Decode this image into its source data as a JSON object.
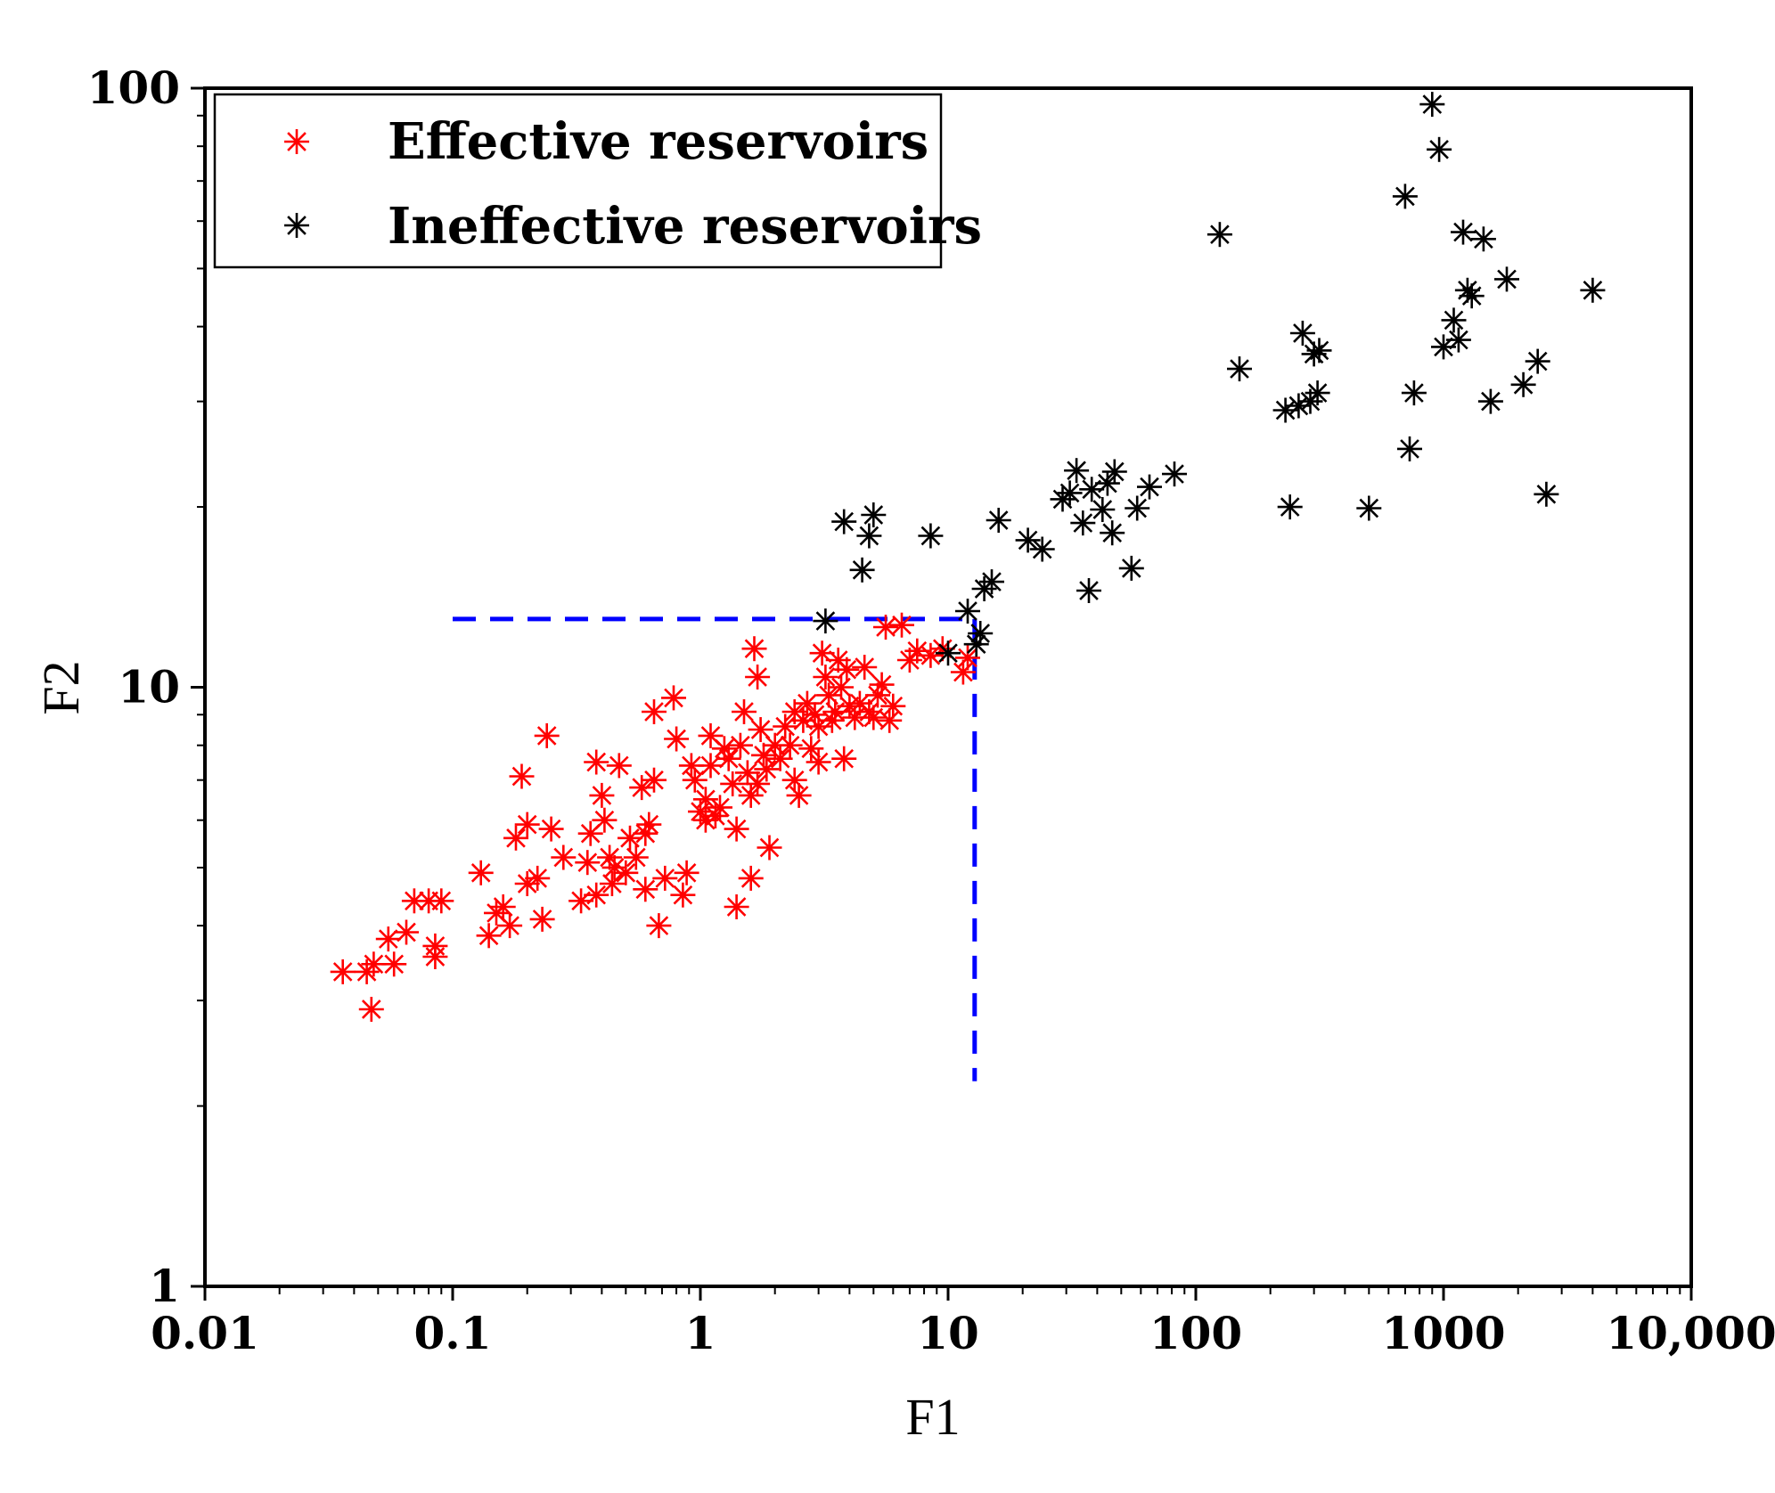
{
  "chart_data": {
    "type": "scatter",
    "xlabel": "F1",
    "ylabel": "F2",
    "xscale": "log",
    "yscale": "log",
    "xlim": [
      0.01,
      10000
    ],
    "ylim": [
      1,
      100
    ],
    "xticks": [
      "0.01",
      "0.1",
      "1",
      "10",
      "100",
      "1000",
      "10,000"
    ],
    "yticks": [
      "1",
      "10",
      "100"
    ],
    "legend_position": "top-left",
    "grid": false,
    "marker": "asterisk",
    "series": [
      {
        "name": "Effective reservoirs",
        "color": "#ff0000",
        "points": [
          [
            0.036,
            3.35
          ],
          [
            0.045,
            3.35
          ],
          [
            0.047,
            2.9
          ],
          [
            0.048,
            3.45
          ],
          [
            0.055,
            3.8
          ],
          [
            0.058,
            3.45
          ],
          [
            0.065,
            3.9
          ],
          [
            0.07,
            4.4
          ],
          [
            0.08,
            4.4
          ],
          [
            0.085,
            3.55
          ],
          [
            0.085,
            3.7
          ],
          [
            0.09,
            4.4
          ],
          [
            0.13,
            4.9
          ],
          [
            0.14,
            3.85
          ],
          [
            0.15,
            4.2
          ],
          [
            0.16,
            4.3
          ],
          [
            0.17,
            4.0
          ],
          [
            0.18,
            5.6
          ],
          [
            0.19,
            7.1
          ],
          [
            0.2,
            5.9
          ],
          [
            0.2,
            4.7
          ],
          [
            0.22,
            4.8
          ],
          [
            0.23,
            4.1
          ],
          [
            0.25,
            5.8
          ],
          [
            0.24,
            8.3
          ],
          [
            0.28,
            5.2
          ],
          [
            0.33,
            4.4
          ],
          [
            0.35,
            5.1
          ],
          [
            0.36,
            5.7
          ],
          [
            0.38,
            4.5
          ],
          [
            0.38,
            7.5
          ],
          [
            0.4,
            6.6
          ],
          [
            0.41,
            6.0
          ],
          [
            0.43,
            5.2
          ],
          [
            0.44,
            4.7
          ],
          [
            0.45,
            5.0
          ],
          [
            0.47,
            7.4
          ],
          [
            0.5,
            4.9
          ],
          [
            0.52,
            5.6
          ],
          [
            0.55,
            5.2
          ],
          [
            0.58,
            6.8
          ],
          [
            0.6,
            5.7
          ],
          [
            0.62,
            5.9
          ],
          [
            0.65,
            7.0
          ],
          [
            0.6,
            4.6
          ],
          [
            0.65,
            9.1
          ],
          [
            0.68,
            4.0
          ],
          [
            0.72,
            4.8
          ],
          [
            0.78,
            9.6
          ],
          [
            0.8,
            8.2
          ],
          [
            0.85,
            4.5
          ],
          [
            0.88,
            4.9
          ],
          [
            0.92,
            7.4
          ],
          [
            0.95,
            7.0
          ],
          [
            1.0,
            6.2
          ],
          [
            1.05,
            6.5
          ],
          [
            1.05,
            6.0
          ],
          [
            1.1,
            7.4
          ],
          [
            1.1,
            8.3
          ],
          [
            1.15,
            6.1
          ],
          [
            1.2,
            6.3
          ],
          [
            1.25,
            7.9
          ],
          [
            1.3,
            7.6
          ],
          [
            1.35,
            6.9
          ],
          [
            1.4,
            4.3
          ],
          [
            1.4,
            5.8
          ],
          [
            1.45,
            8.0
          ],
          [
            1.5,
            9.1
          ],
          [
            1.55,
            7.2
          ],
          [
            1.6,
            6.6
          ],
          [
            1.6,
            4.8
          ],
          [
            1.65,
            11.6
          ],
          [
            1.7,
            10.4
          ],
          [
            1.7,
            6.9
          ],
          [
            1.75,
            8.5
          ],
          [
            1.8,
            7.7
          ],
          [
            1.85,
            7.3
          ],
          [
            1.9,
            5.4
          ],
          [
            2.0,
            8.0
          ],
          [
            2.1,
            7.6
          ],
          [
            2.2,
            8.6
          ],
          [
            2.3,
            8.0
          ],
          [
            2.4,
            9.1
          ],
          [
            2.4,
            7.0
          ],
          [
            2.5,
            6.6
          ],
          [
            2.6,
            8.8
          ],
          [
            2.7,
            9.4
          ],
          [
            2.8,
            7.9
          ],
          [
            2.9,
            9.0
          ],
          [
            3.0,
            8.6
          ],
          [
            3.0,
            7.5
          ],
          [
            3.1,
            11.4
          ],
          [
            3.2,
            10.4
          ],
          [
            3.3,
            9.7
          ],
          [
            3.4,
            8.8
          ],
          [
            3.5,
            9.1
          ],
          [
            3.6,
            11.1
          ],
          [
            3.7,
            10.0
          ],
          [
            3.8,
            7.6
          ],
          [
            3.9,
            10.7
          ],
          [
            4.0,
            9.3
          ],
          [
            4.2,
            8.9
          ],
          [
            4.4,
            9.4
          ],
          [
            4.6,
            10.8
          ],
          [
            4.8,
            9.1
          ],
          [
            5.0,
            8.9
          ],
          [
            5.2,
            9.7
          ],
          [
            5.4,
            10.1
          ],
          [
            5.6,
            12.6
          ],
          [
            5.8,
            8.8
          ],
          [
            6.0,
            9.3
          ],
          [
            6.5,
            12.7
          ],
          [
            7.0,
            11.1
          ],
          [
            7.5,
            11.5
          ],
          [
            8.5,
            11.3
          ],
          [
            9.5,
            11.6
          ],
          [
            11.5,
            10.6
          ],
          [
            12.0,
            11.2
          ]
        ]
      },
      {
        "name": "Ineffective reservoirs",
        "color": "#000000",
        "points": [
          [
            3.2,
            12.9
          ],
          [
            3.8,
            18.9
          ],
          [
            4.5,
            15.7
          ],
          [
            4.8,
            17.9
          ],
          [
            5.0,
            19.4
          ],
          [
            8.5,
            17.9
          ],
          [
            10.0,
            11.4
          ],
          [
            12.0,
            13.4
          ],
          [
            13.0,
            11.8
          ],
          [
            13.5,
            12.3
          ],
          [
            14.0,
            14.6
          ],
          [
            15.0,
            15.0
          ],
          [
            16.0,
            19.0
          ],
          [
            21.0,
            17.6
          ],
          [
            24.0,
            17.0
          ],
          [
            29.0,
            20.6
          ],
          [
            31.0,
            21.1
          ],
          [
            33.0,
            23.0
          ],
          [
            35.0,
            18.8
          ],
          [
            37.0,
            14.5
          ],
          [
            38.0,
            21.4
          ],
          [
            42.0,
            19.8
          ],
          [
            44.0,
            21.9
          ],
          [
            46.0,
            18.1
          ],
          [
            47.0,
            22.9
          ],
          [
            55.0,
            15.8
          ],
          [
            58.0,
            19.9
          ],
          [
            65.0,
            21.6
          ],
          [
            82.0,
            22.7
          ],
          [
            125.0,
            57.0
          ],
          [
            150.0,
            34.0
          ],
          [
            230.0,
            29.0
          ],
          [
            240.0,
            20.0
          ],
          [
            260.0,
            29.5
          ],
          [
            270.0,
            39.0
          ],
          [
            290.0,
            30.0
          ],
          [
            300.0,
            36.0
          ],
          [
            310.0,
            31.0
          ],
          [
            315.0,
            36.5
          ],
          [
            500.0,
            19.9
          ],
          [
            700.0,
            66.0
          ],
          [
            730.0,
            25.0
          ],
          [
            760.0,
            31.0
          ],
          [
            900.0,
            94.0
          ],
          [
            960.0,
            79.0
          ],
          [
            1000.0,
            37.0
          ],
          [
            1100.0,
            41.0
          ],
          [
            1150.0,
            38.0
          ],
          [
            1200.0,
            57.5
          ],
          [
            1250.0,
            46.0
          ],
          [
            1300.0,
            45.0
          ],
          [
            1450.0,
            56.0
          ],
          [
            1550.0,
            30.0
          ],
          [
            1800.0,
            48.0
          ],
          [
            2100.0,
            32.0
          ],
          [
            2400.0,
            35.0
          ],
          [
            2600.0,
            21.0
          ],
          [
            4000.0,
            46.0
          ]
        ]
      }
    ],
    "annotation": {
      "type": "threshold-lines",
      "color": "#0000ff",
      "style": "dashed",
      "x_threshold": 12.8,
      "y_threshold": 13.0,
      "x_start": 0.1,
      "y_bottom": 2.2
    }
  }
}
